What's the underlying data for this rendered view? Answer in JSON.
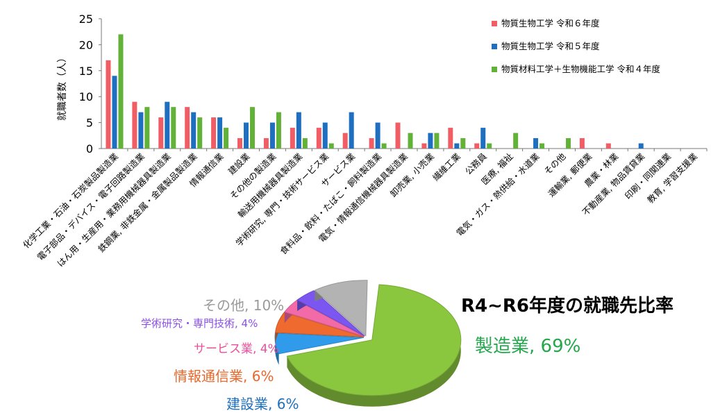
{
  "chart_data": [
    {
      "type": "bar",
      "ylabel": "就職者数（人）",
      "ylim": [
        0,
        25
      ],
      "yticks": [
        0,
        5,
        10,
        15,
        20,
        25
      ],
      "legend_position": "top-right",
      "categories": [
        "化学工業・石油・石炭製品製造業",
        "電子部品・デバイス・電子回路製造業",
        "はん用・生産用・業務用機械器具製造業",
        "鉄鋼業, 非鉄金属・金属製品製造業",
        "情報通信業",
        "建設業",
        "その他の製造業",
        "輸送用機械器具製造業",
        "学術研究, 専門・技術サービス業",
        "サービス業",
        "食料品・飲料・たばこ・飼料製造業",
        "電気・情報通信機械器具製造業",
        "卸売業, 小売業",
        "繊維工業",
        "公務員",
        "医療, 福祉",
        "電気・ガス・熱供給・水道業",
        "その他",
        "運輸業, 郵便業",
        "農業・林業",
        "不動産業, 物品賃貸業",
        "印刷・同関連業",
        "教育, 学習支援業"
      ],
      "series": [
        {
          "name": "物質生物工学 令和６年度",
          "color": "#f05d64",
          "values": [
            17,
            9,
            6,
            8,
            6,
            2,
            2,
            4,
            4,
            3,
            2,
            5,
            1,
            4,
            1,
            0,
            0,
            0,
            2,
            1,
            0,
            0,
            0
          ]
        },
        {
          "name": "物質生物工学 令和５年度",
          "color": "#1f6fc0",
          "values": [
            14,
            7,
            9,
            7,
            6,
            5,
            5,
            7,
            5,
            7,
            5,
            0,
            3,
            1,
            4,
            0,
            2,
            0,
            0,
            0,
            1,
            0,
            0
          ]
        },
        {
          "name": "物質材料工学＋生物機能工学 令和４年度",
          "color": "#62b23a",
          "values": [
            22,
            8,
            8,
            6,
            4,
            8,
            7,
            2,
            1,
            0,
            1,
            3,
            3,
            2,
            1,
            3,
            1,
            2,
            0,
            0,
            0,
            0,
            0
          ]
        }
      ]
    },
    {
      "type": "pie",
      "title": "R4~R6年度の就職先比率",
      "slices": [
        {
          "label": "製造業",
          "percent": 69,
          "color": "#8ac73f",
          "text_color": "#22a84b"
        },
        {
          "label": "建設業",
          "percent": 6,
          "color": "#2f9bea",
          "text_color": "#1f6fc0"
        },
        {
          "label": "情報通信業",
          "percent": 6,
          "color": "#ee6a2e",
          "text_color": "#e8672a"
        },
        {
          "label": "サービス業",
          "percent": 4,
          "color": "#f36aa8",
          "text_color": "#ea4f9a"
        },
        {
          "label": "学術研究・専門技術",
          "percent": 4,
          "color": "#7b56f0",
          "text_color": "#8a50ea"
        },
        {
          "label": "その他",
          "percent": 10,
          "color": "#b3b3b3",
          "text_color": "#9a9a9a"
        }
      ]
    }
  ]
}
